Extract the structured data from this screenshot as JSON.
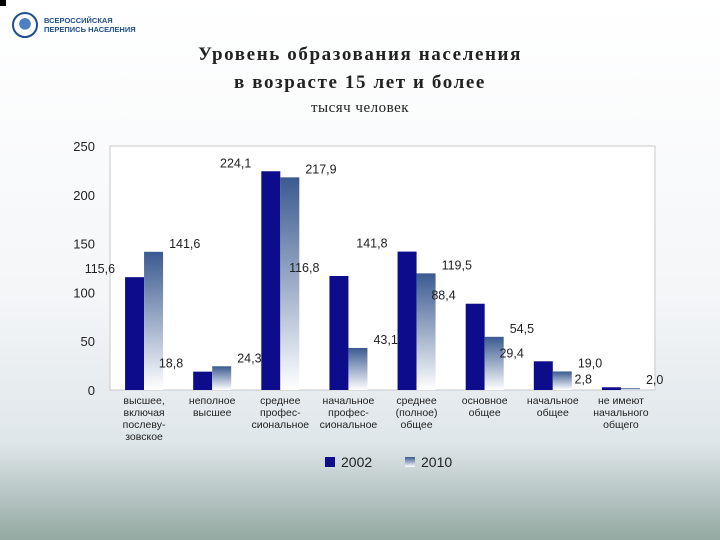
{
  "header": {
    "logo_text_line1": "ВСЕРОССИЙСКАЯ",
    "logo_text_line2": "ПЕРЕПИСЬ НАСЕЛЕНИЯ",
    "title_line1": "Уровень образования населения",
    "title_line2": "в возрасте 15 лет и более",
    "subtitle": "тысяч человек"
  },
  "colors": {
    "series_2002": "#0d0d8c",
    "series_2010_dark": "#3a5a90",
    "series_2010_light": "#ffffff"
  },
  "chart_data": {
    "type": "bar",
    "categories": [
      [
        "высшее,",
        "включая",
        "послеву-",
        "зовское"
      ],
      [
        "неполное",
        "высшее"
      ],
      [
        "среднее",
        "профес-",
        "сиональное"
      ],
      [
        "начальное",
        "профес-",
        "сиональное"
      ],
      [
        "среднее",
        "(полное)",
        "общее"
      ],
      [
        "основное",
        "общее"
      ],
      [
        "начальное",
        "общее"
      ],
      [
        "не имеют",
        "начального",
        "общего"
      ]
    ],
    "series": [
      {
        "name": "2002",
        "values": [
          115.6,
          18.8,
          224.1,
          116.8,
          141.8,
          88.4,
          29.4,
          2.8
        ],
        "labels": [
          "115,6",
          "18,8",
          "224,1",
          "116,8",
          "141,8",
          "88,4",
          "29,4",
          "2,8"
        ]
      },
      {
        "name": "2010",
        "values": [
          141.6,
          24.3,
          217.9,
          43.1,
          119.5,
          54.5,
          19.0,
          2.0
        ],
        "labels": [
          "141,6",
          "24,3",
          "217,9",
          "43,1",
          "119,5",
          "54,5",
          "19,0",
          "2,0"
        ]
      }
    ],
    "ylim": [
      0,
      250
    ],
    "yticks": [
      0,
      50,
      100,
      150,
      200,
      250
    ],
    "grid": false,
    "legend": "bottom"
  }
}
